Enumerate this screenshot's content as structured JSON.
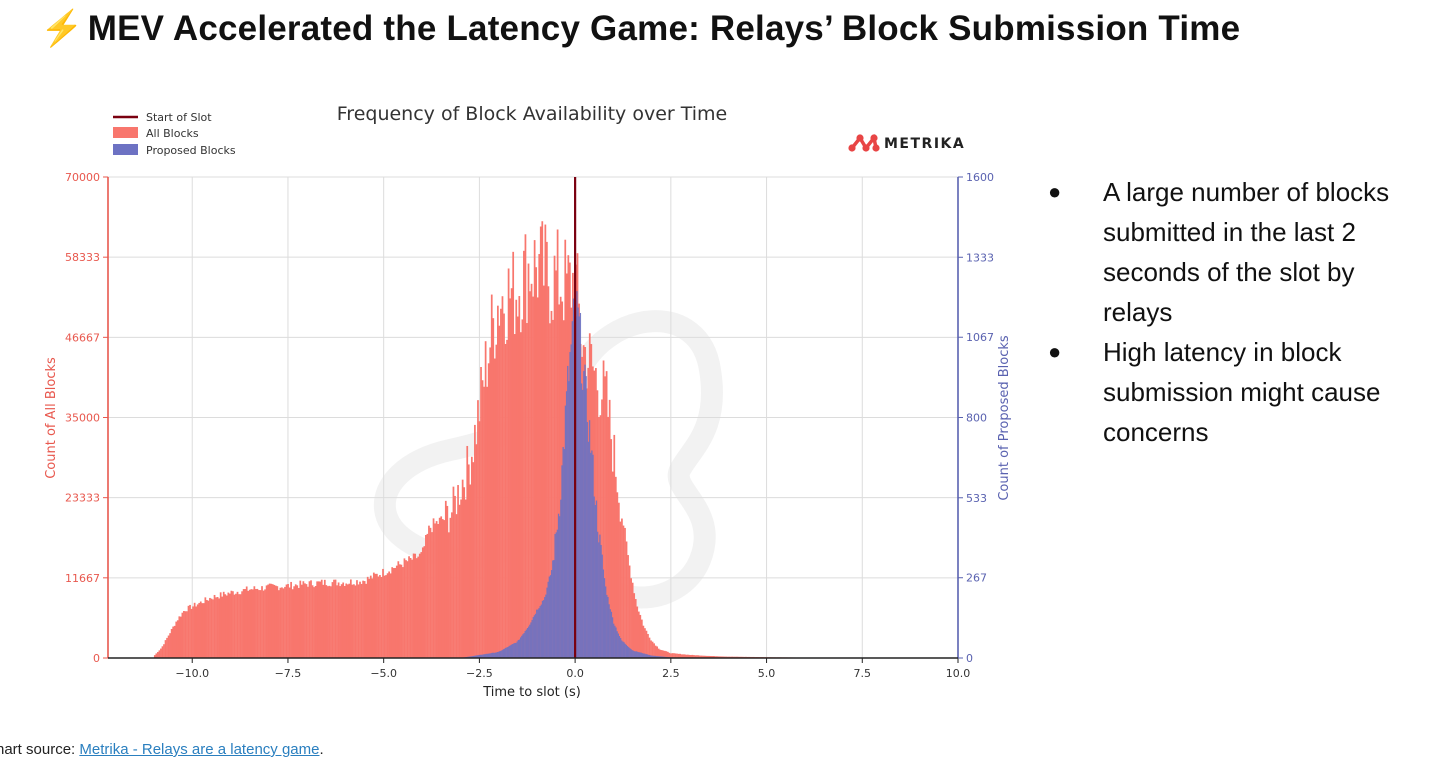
{
  "slide": {
    "title_icon": "lightning-bolt-icon",
    "title_icon_glyph": "⚡",
    "title": "MEV Accelerated the Latency Game: Relays’ Block Submission Time",
    "bullets": [
      "A large number of blocks submitted in the last 2 seconds of the slot by relays",
      "High latency in block submission might cause concerns"
    ],
    "source_prefix": "hart source: ",
    "source_link": "Metrika - Relays are a latency game",
    "source_suffix": "."
  },
  "chart_data": {
    "type": "bar",
    "title": "Frequency of Block Availability over Time",
    "logo_text": "METRIKA",
    "xlabel": "Time to slot (s)",
    "ylabel_left": "Count of All Blocks",
    "ylabel_right": "Count of Proposed Blocks",
    "xlim": [
      -12.2,
      10.0
    ],
    "ylim_left": [
      0,
      70000
    ],
    "ylim_right": [
      0,
      1600
    ],
    "xticks": [
      -10.0,
      -7.5,
      -5.0,
      -2.5,
      0.0,
      2.5,
      5.0,
      7.5,
      10.0
    ],
    "xtick_labels": [
      "−10.0",
      "−7.5",
      "−5.0",
      "−2.5",
      "0.0",
      "2.5",
      "5.0",
      "7.5",
      "10.0"
    ],
    "yticks_left": [
      0,
      11667,
      23333,
      35000,
      46667,
      58333,
      70000
    ],
    "yticks_right": [
      0,
      267,
      533,
      800,
      1067,
      1333,
      1600
    ],
    "grid": true,
    "legend_position": "top-left",
    "vline": {
      "name": "Start of Slot",
      "x": 0.0,
      "color": "#7a0010"
    },
    "colors": {
      "all": "#f8766d",
      "proposed": "#6d72c3",
      "left_axis": "#e8584e",
      "right_axis": "#5a62b0"
    },
    "series": [
      {
        "name": "All Blocks",
        "axis": "left",
        "x": [
          -11.0,
          -10.8,
          -10.6,
          -10.4,
          -10.2,
          -10.0,
          -9.5,
          -9.0,
          -8.5,
          -8.0,
          -7.5,
          -7.0,
          -6.5,
          -6.0,
          -5.5,
          -5.0,
          -4.5,
          -4.0,
          -3.8,
          -3.5,
          -3.2,
          -3.0,
          -2.8,
          -2.6,
          -2.4,
          -2.2,
          -2.0,
          -1.8,
          -1.6,
          -1.4,
          -1.2,
          -1.0,
          -0.8,
          -0.6,
          -0.4,
          -0.2,
          0.0,
          0.1,
          0.2,
          0.4,
          0.6,
          0.8,
          1.0,
          1.2,
          1.4,
          1.6,
          1.8,
          2.0,
          2.2,
          2.5,
          3.0,
          3.5,
          4.0,
          5.0,
          6.0,
          7.0,
          8.0
        ],
        "values": [
          300,
          1500,
          3500,
          5500,
          7000,
          7500,
          8800,
          9500,
          10000,
          10300,
          10500,
          10800,
          11000,
          11000,
          11300,
          12500,
          13800,
          15000,
          19000,
          20000,
          21500,
          25000,
          27500,
          33000,
          40000,
          47000,
          52000,
          53000,
          53000,
          55000,
          57000,
          57000,
          56000,
          55000,
          55000,
          54000,
          55000,
          50000,
          45000,
          43000,
          40000,
          38000,
          30000,
          22000,
          14000,
          8000,
          4500,
          2500,
          1300,
          700,
          450,
          300,
          200,
          120,
          60,
          30,
          10
        ]
      },
      {
        "name": "Proposed Blocks",
        "axis": "right",
        "x": [
          -3.0,
          -2.5,
          -2.0,
          -1.5,
          -1.2,
          -1.0,
          -0.8,
          -0.6,
          -0.4,
          -0.2,
          0.0,
          0.1,
          0.2,
          0.4,
          0.6,
          0.8,
          1.0,
          1.2,
          1.5,
          2.0,
          2.5,
          3.0
        ],
        "values": [
          0,
          10,
          20,
          55,
          110,
          160,
          200,
          300,
          520,
          900,
          1170,
          1100,
          960,
          720,
          430,
          230,
          120,
          60,
          25,
          8,
          2,
          0
        ]
      }
    ]
  }
}
